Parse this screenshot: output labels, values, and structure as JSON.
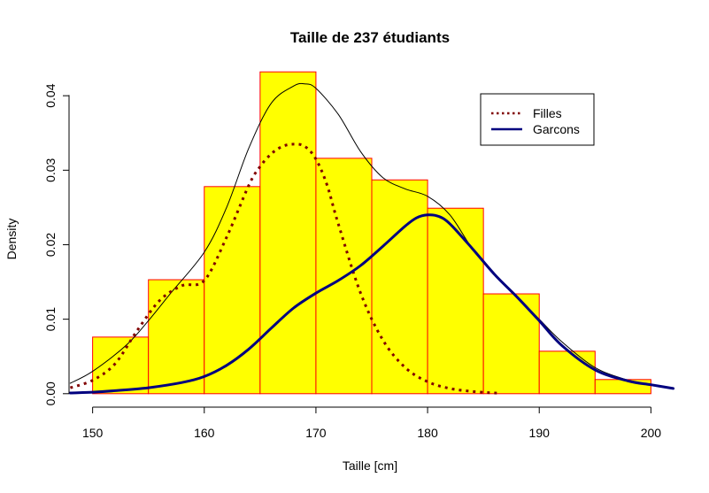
{
  "chart_data": {
    "type": "bar",
    "title": "Taille de 237 étudiants",
    "xlabel": "Taille [cm]",
    "ylabel": "Density",
    "xlim": [
      148,
      202
    ],
    "ylim": [
      0,
      0.043
    ],
    "x_ticks": [
      "150",
      "160",
      "170",
      "180",
      "190",
      "200"
    ],
    "y_ticks": [
      "0.00",
      "0.01",
      "0.02",
      "0.03",
      "0.04"
    ],
    "bar_fill": "#ffff00",
    "bar_stroke": "#ff0000",
    "histogram": {
      "bin_edges": [
        150,
        155,
        160,
        165,
        170,
        175,
        180,
        185,
        190,
        195,
        200
      ],
      "density": [
        0.0076,
        0.0153,
        0.0278,
        0.0432,
        0.0316,
        0.0287,
        0.0249,
        0.0134,
        0.0057,
        0.0019
      ]
    },
    "series": [
      {
        "kind": "density",
        "color": "#000000",
        "style": "solid-thin",
        "x": [
          148,
          150,
          153,
          155,
          157,
          160,
          162,
          164,
          166,
          168,
          169,
          170,
          172,
          174,
          176,
          178,
          180,
          182,
          184,
          186,
          188,
          190,
          192,
          195,
          198,
          200,
          202
        ],
        "y": [
          0.0014,
          0.003,
          0.0065,
          0.0098,
          0.0135,
          0.019,
          0.025,
          0.033,
          0.039,
          0.0413,
          0.0416,
          0.041,
          0.0375,
          0.0325,
          0.029,
          0.0275,
          0.0265,
          0.024,
          0.0195,
          0.016,
          0.013,
          0.01,
          0.007,
          0.0035,
          0.0018,
          0.0012,
          0.0007
        ]
      },
      {
        "name": "Filles",
        "color": "#800000",
        "style": "dotted",
        "x": [
          148,
          150,
          152,
          154,
          156,
          158,
          160,
          162,
          164,
          165,
          166,
          167,
          168,
          169,
          170,
          171,
          172,
          174,
          176,
          178,
          180,
          182,
          184,
          186,
          186.5
        ],
        "y": [
          0.0008,
          0.0018,
          0.004,
          0.0085,
          0.0125,
          0.0145,
          0.0152,
          0.021,
          0.028,
          0.0305,
          0.0322,
          0.0332,
          0.0335,
          0.0332,
          0.0315,
          0.028,
          0.0228,
          0.0135,
          0.0072,
          0.0035,
          0.0016,
          0.0007,
          0.0003,
          0.0001,
          0.0001
        ]
      },
      {
        "name": "Garcons",
        "color": "#00007f",
        "style": "solid-thick",
        "x": [
          148,
          150,
          152,
          155,
          158,
          160,
          162,
          164,
          166,
          168,
          170,
          172,
          174,
          176,
          178,
          179,
          180,
          181,
          182,
          184,
          186,
          188,
          190,
          192,
          195,
          198,
          200,
          202
        ],
        "y": [
          0.0001,
          0.0002,
          0.0004,
          0.0008,
          0.0015,
          0.0023,
          0.0038,
          0.006,
          0.0088,
          0.0115,
          0.0135,
          0.0152,
          0.0172,
          0.0198,
          0.0225,
          0.0236,
          0.024,
          0.0238,
          0.0228,
          0.0195,
          0.016,
          0.013,
          0.0098,
          0.0065,
          0.0032,
          0.0017,
          0.0012,
          0.0007
        ]
      }
    ],
    "legend": {
      "position": "top-right",
      "entries": [
        {
          "label": "Filles",
          "color": "#800000",
          "style": "dotted"
        },
        {
          "label": "Garcons",
          "color": "#00007f",
          "style": "solid-thick"
        }
      ]
    },
    "grid": false
  }
}
